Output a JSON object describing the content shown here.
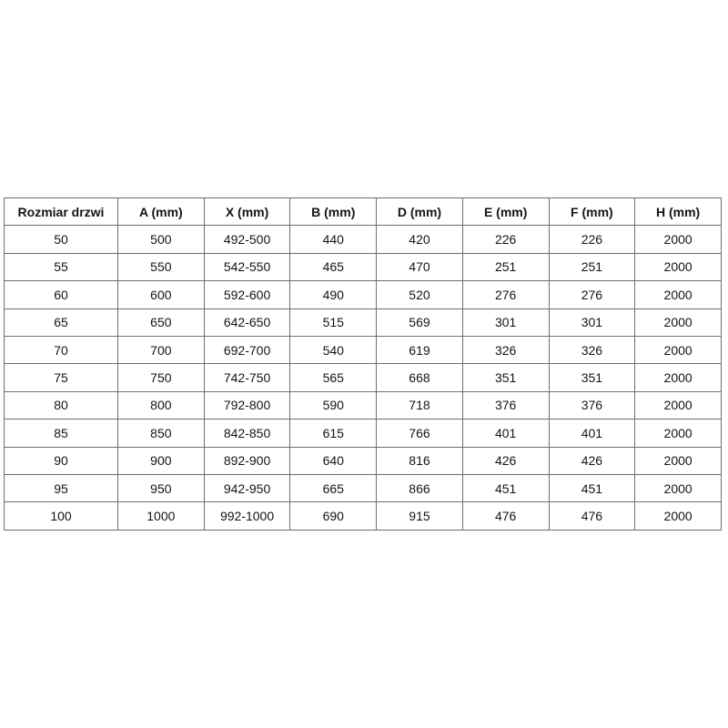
{
  "page": {
    "background_color": "#ffffff"
  },
  "table_style": {
    "border_color": "#6e6e6e",
    "text_color": "#141414"
  },
  "chart_data": {
    "type": "table",
    "columns": [
      "Rozmiar drzwi",
      "A (mm)",
      "X (mm)",
      "B (mm)",
      "D (mm)",
      "E (mm)",
      "F (mm)",
      "H (mm)"
    ],
    "rows": [
      [
        "50",
        "500",
        "492-500",
        "440",
        "420",
        "226",
        "226",
        "2000"
      ],
      [
        "55",
        "550",
        "542-550",
        "465",
        "470",
        "251",
        "251",
        "2000"
      ],
      [
        "60",
        "600",
        "592-600",
        "490",
        "520",
        "276",
        "276",
        "2000"
      ],
      [
        "65",
        "650",
        "642-650",
        "515",
        "569",
        "301",
        "301",
        "2000"
      ],
      [
        "70",
        "700",
        "692-700",
        "540",
        "619",
        "326",
        "326",
        "2000"
      ],
      [
        "75",
        "750",
        "742-750",
        "565",
        "668",
        "351",
        "351",
        "2000"
      ],
      [
        "80",
        "800",
        "792-800",
        "590",
        "718",
        "376",
        "376",
        "2000"
      ],
      [
        "85",
        "850",
        "842-850",
        "615",
        "766",
        "401",
        "401",
        "2000"
      ],
      [
        "90",
        "900",
        "892-900",
        "640",
        "816",
        "426",
        "426",
        "2000"
      ],
      [
        "95",
        "950",
        "942-950",
        "665",
        "866",
        "451",
        "451",
        "2000"
      ],
      [
        "100",
        "1000",
        "992-1000",
        "690",
        "915",
        "476",
        "476",
        "2000"
      ]
    ]
  }
}
